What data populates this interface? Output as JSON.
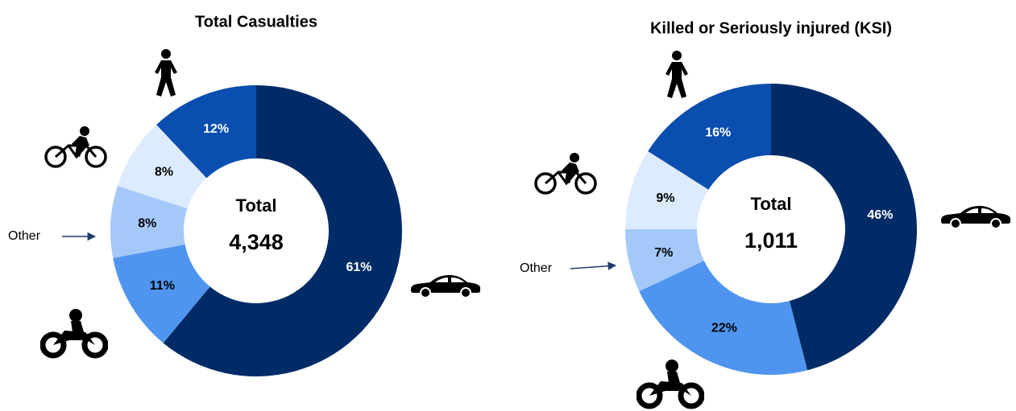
{
  "chart_data": [
    {
      "type": "donut",
      "title": "Total Casualties",
      "center_title": "Total",
      "center_value": "4,348",
      "categories": [
        null,
        null,
        "Other",
        null,
        null
      ],
      "values": [
        61,
        11,
        8,
        8,
        12
      ],
      "value_labels": [
        "61%",
        "11%",
        "8%",
        "8%",
        "12%"
      ],
      "colors": [
        "#002b66",
        "#4f95f0",
        "#a4c9f8",
        "#dcebfd",
        "#0a4eaf"
      ]
    },
    {
      "type": "donut",
      "title": "Killed or Seriously injured (KSI)",
      "center_title": "Total",
      "center_value": "1,011",
      "categories": [
        null,
        null,
        "Other",
        null,
        null
      ],
      "values": [
        46,
        22,
        7,
        9,
        16
      ],
      "value_labels": [
        "46%",
        "22%",
        "7%",
        "9%",
        "16%"
      ],
      "colors": [
        "#002b66",
        "#4f95f0",
        "#a4c9f8",
        "#dcebfd",
        "#0a4eaf"
      ]
    }
  ]
}
